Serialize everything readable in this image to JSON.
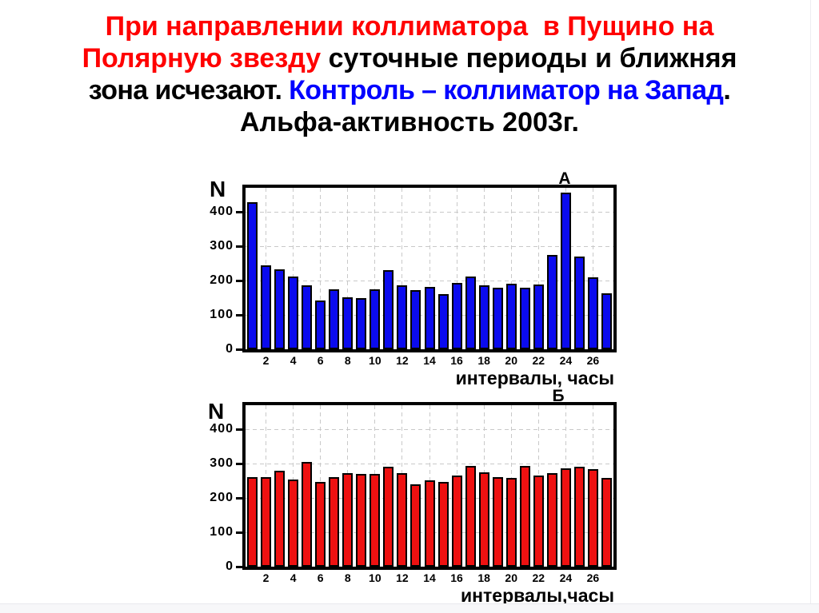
{
  "slide": {
    "title_lines": [
      {
        "segments": [
          {
            "text": "При направлении коллиматора  в Пущино на",
            "color": "#ff0000"
          }
        ]
      },
      {
        "segments": [
          {
            "text": "Полярную звезду",
            "color": "#ff0000"
          },
          {
            "text": " суточные периоды и ближняя",
            "color": "#000000"
          }
        ]
      },
      {
        "segments": [
          {
            "text": "зона исчезают. ",
            "color": "#000000"
          },
          {
            "text": "Контроль – коллиматор на Запад",
            "color": "#0000ff"
          },
          {
            "text": ".",
            "color": "#000000"
          }
        ]
      },
      {
        "segments": [
          {
            "text": "Альфа-активность 2003г.",
            "color": "#000000"
          }
        ]
      }
    ]
  },
  "chart_data": [
    {
      "type": "bar",
      "panel_label": "А",
      "ylabel": "N",
      "xlabel": "интервалы, часы",
      "categories": [
        1,
        2,
        3,
        4,
        5,
        6,
        7,
        8,
        9,
        10,
        11,
        12,
        13,
        14,
        15,
        16,
        17,
        18,
        19,
        20,
        21,
        22,
        23,
        24,
        25,
        26,
        27
      ],
      "values": [
        427,
        245,
        232,
        212,
        185,
        143,
        174,
        151,
        148,
        174,
        231,
        186,
        172,
        182,
        160,
        193,
        212,
        185,
        179,
        191,
        178,
        189,
        275,
        455,
        270,
        209,
        163
      ],
      "x_tick_labels": [
        2,
        4,
        6,
        8,
        10,
        12,
        14,
        16,
        18,
        20,
        22,
        24,
        26
      ],
      "y_tick_labels": [
        0,
        100,
        200,
        300,
        400
      ],
      "ylim": [
        0,
        470
      ],
      "bar_color": "#0b0bee",
      "grid": "dashed"
    },
    {
      "type": "bar",
      "panel_label": "Б",
      "ylabel": "N",
      "xlabel": "интервалы,часы",
      "categories": [
        1,
        2,
        3,
        4,
        5,
        6,
        7,
        8,
        9,
        10,
        11,
        12,
        13,
        14,
        15,
        16,
        17,
        18,
        19,
        20,
        21,
        22,
        23,
        24,
        25,
        26,
        27
      ],
      "values": [
        261,
        260,
        279,
        254,
        304,
        247,
        261,
        273,
        269,
        271,
        291,
        272,
        240,
        251,
        246,
        266,
        294,
        275,
        261,
        259,
        294,
        265,
        273,
        286,
        290,
        283,
        259
      ],
      "x_tick_labels": [
        2,
        4,
        6,
        8,
        10,
        12,
        14,
        16,
        18,
        20,
        22,
        24,
        26
      ],
      "y_tick_labels": [
        0,
        100,
        200,
        300,
        400
      ],
      "ylim": [
        0,
        470
      ],
      "bar_color": "#ee1111",
      "grid": "dashed"
    }
  ]
}
